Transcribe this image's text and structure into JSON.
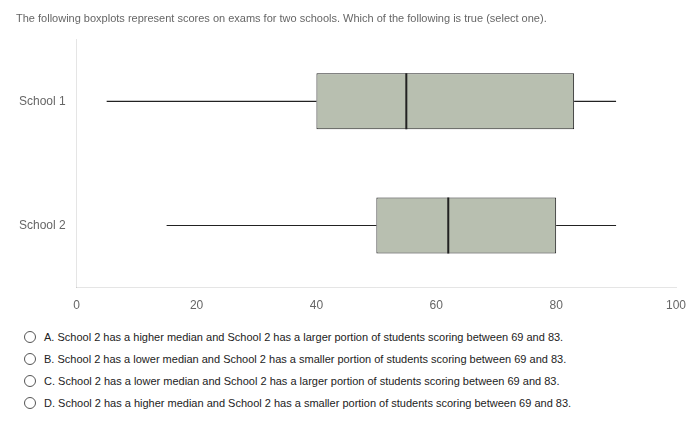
{
  "chart_data": {
    "type": "boxplot",
    "title": "The following boxplots represent scores on exams for two schools. Which of the following is true (select one).",
    "categories": [
      "School 1",
      "School 2"
    ],
    "whisker_low": [
      5,
      15
    ],
    "q1": [
      40,
      50
    ],
    "median": [
      55,
      62
    ],
    "q3": [
      83,
      80
    ],
    "whisker_high": [
      90,
      90
    ],
    "color": "#b8bfb0",
    "xlim": [
      0,
      100
    ],
    "xticks": [
      0,
      20,
      40,
      60,
      80,
      100
    ],
    "grid": false,
    "tick_labels": "x",
    "annotations": [
      "A. School 2 has a higher median and School 2 has a larger portion of students scoring between 69 and 83.",
      "B. School 2 has a lower median and School 2 has a smaller portion of students scoring between 69 and 83.",
      "C. School 2 has a lower median and School 2 has a larger portion of students scoring between 69 and 83.",
      "D. School 2 has a higher median and School 2 has a smaller portion of students scoring between 69 and 83."
    ]
  }
}
